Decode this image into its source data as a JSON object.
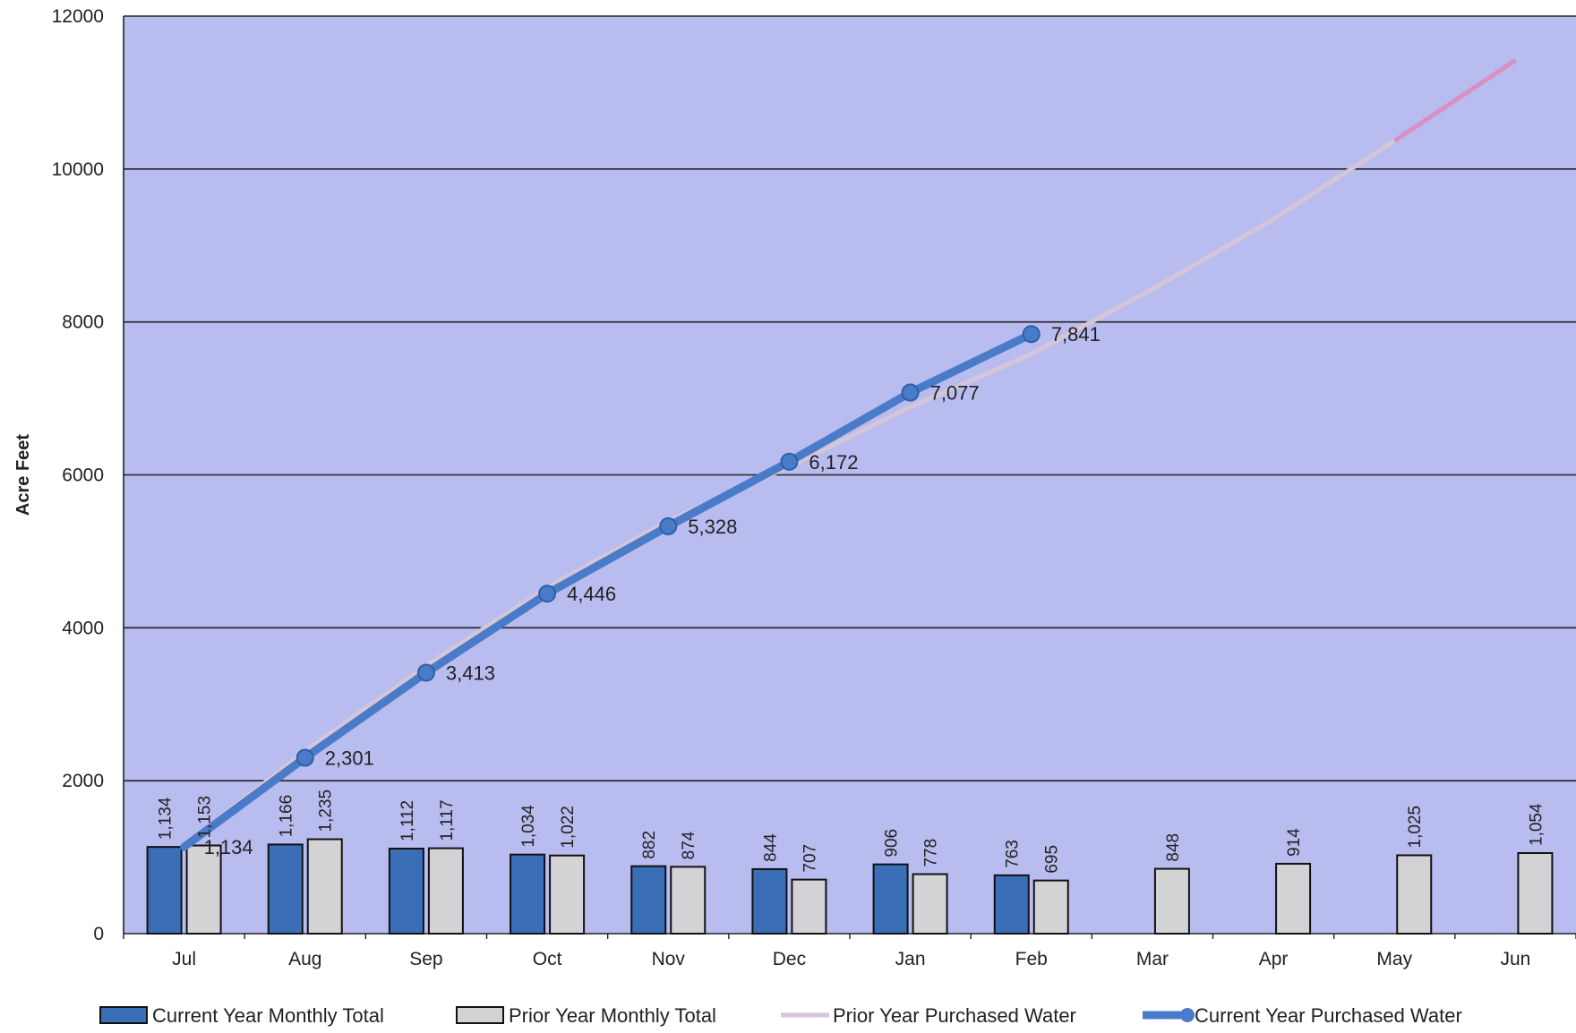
{
  "colors": {
    "plot_background": "#b9bcef",
    "current_bar": "#3a6fb8",
    "prior_bar": "#d3d3d6",
    "prior_line": "#d4c6d8",
    "prior_line_tail": "#d98fc2",
    "current_line": "#4a7bc8",
    "gridline": "#222222"
  },
  "chart_data": {
    "type": "bar",
    "ylabel": "Acre Feet",
    "ylim": [
      0,
      12000
    ],
    "yticks": [
      0,
      2000,
      4000,
      6000,
      8000,
      10000,
      12000
    ],
    "grid": true,
    "legend_position": "bottom",
    "categories": [
      "Jul",
      "Aug",
      "Sep",
      "Oct",
      "Nov",
      "Dec",
      "Jan",
      "Feb",
      "Mar",
      "Apr",
      "May",
      "Jun"
    ],
    "series": [
      {
        "name": "Current Year Monthly Total",
        "kind": "bar",
        "values": [
          1134,
          1166,
          1112,
          1034,
          882,
          844,
          906,
          763,
          null,
          null,
          null,
          null
        ],
        "labels": [
          "1,134",
          "1,166",
          "1,112",
          "1,034",
          "882",
          "844",
          "906",
          "763",
          "",
          "",
          "",
          ""
        ]
      },
      {
        "name": "Prior Year Monthly Total",
        "kind": "bar",
        "values": [
          1153,
          1235,
          1117,
          1022,
          874,
          707,
          778,
          695,
          848,
          914,
          1025,
          1054
        ],
        "labels": [
          "1,153",
          "1,235",
          "1,117",
          "1,022",
          "874",
          "707",
          "778",
          "695",
          "848",
          "914",
          "1,025",
          "1,054"
        ]
      },
      {
        "name": "Prior Year Purchased Water",
        "kind": "line",
        "values": [
          1153,
          2388,
          3505,
          4527,
          5401,
          6108,
          6886,
          7581,
          8429,
          9343,
          10368,
          11422
        ]
      },
      {
        "name": "Current Year Purchased Water",
        "kind": "line",
        "values": [
          1134,
          2301,
          3413,
          4446,
          5328,
          6172,
          7077,
          7841,
          null,
          null,
          null,
          null
        ],
        "labels": [
          "1,134",
          "2,301",
          "3,413",
          "4,446",
          "5,328",
          "6,172",
          "7,077",
          "7,841",
          "",
          "",
          "",
          ""
        ]
      }
    ]
  }
}
